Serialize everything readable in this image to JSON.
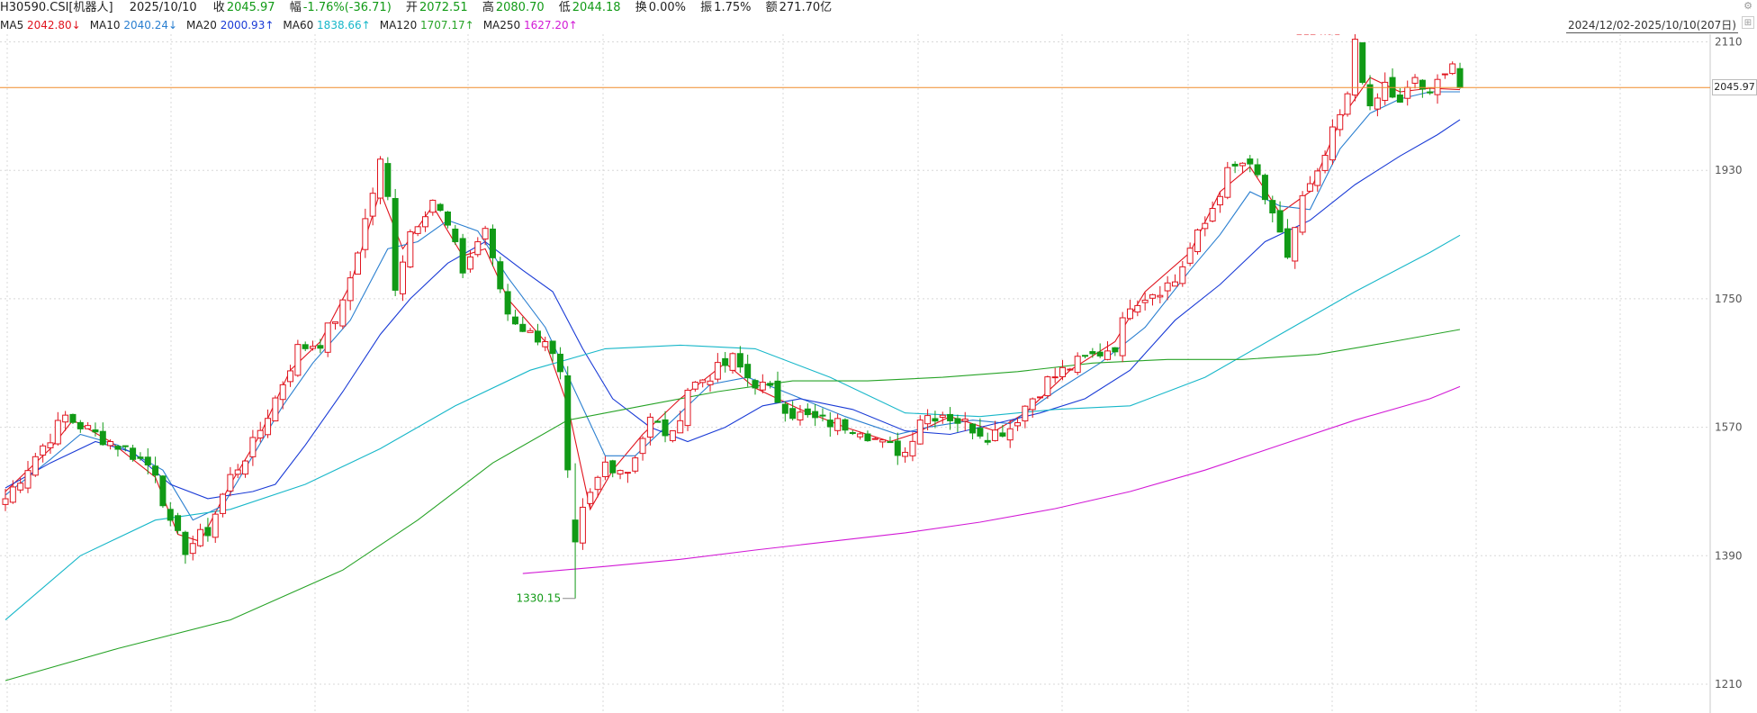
{
  "info": {
    "code": "H30590.CSI[机器人]",
    "date": "2025/10/10",
    "close_label": "收",
    "close": "2045.97",
    "change_label": "幅",
    "change": "-1.76%(-36.71)",
    "open_label": "开",
    "open": "2072.51",
    "high_label": "高",
    "high": "2080.70",
    "low_label": "低",
    "low": "2044.18",
    "turnover_label": "换",
    "turnover": "0.00%",
    "amplitude_label": "振",
    "amplitude": "1.75%",
    "amount_label": "额",
    "amount": "271.70亿"
  },
  "ma": [
    {
      "label": "MA5",
      "value": "2042.80↓",
      "color": "#e0141e"
    },
    {
      "label": "MA10",
      "value": "2040.24↓",
      "color": "#2a7fd0"
    },
    {
      "label": "MA20",
      "value": "2000.93↑",
      "color": "#1a3bd6"
    },
    {
      "label": "MA60",
      "value": "1838.66↑",
      "color": "#17b7c9"
    },
    {
      "label": "MA120",
      "value": "1707.17↑",
      "color": "#27a327"
    },
    {
      "label": "MA250",
      "value": "1627.20↑",
      "color": "#d21ad6"
    }
  ],
  "range_label": "2024/12/02-2025/10/10(207日)",
  "current_price_tag": "2045.97",
  "colors": {
    "up": "#e0141e",
    "down": "#119a16",
    "ref_line": "#f08c2a",
    "grid": "#d8d8d8"
  },
  "chart_data": {
    "type": "candlestick",
    "y_ticks": [
      1210,
      1390,
      1570,
      1750,
      1930,
      2110
    ],
    "ylim": [
      1200,
      2145
    ],
    "current_price": 2045.97,
    "annotations": {
      "max": {
        "label": "2124.91",
        "value": 2124.91
      },
      "min": {
        "label": "1330.15",
        "value": 1330.15
      }
    },
    "close_anchors": [
      [
        0,
        1470
      ],
      [
        4,
        1530
      ],
      [
        8,
        1585
      ],
      [
        12,
        1560
      ],
      [
        16,
        1540
      ],
      [
        20,
        1510
      ],
      [
        22,
        1430
      ],
      [
        24,
        1400
      ],
      [
        27,
        1425
      ],
      [
        30,
        1500
      ],
      [
        33,
        1545
      ],
      [
        36,
        1610
      ],
      [
        39,
        1680
      ],
      [
        42,
        1690
      ],
      [
        45,
        1740
      ],
      [
        47,
        1820
      ],
      [
        49,
        1900
      ],
      [
        50,
        1940
      ],
      [
        51,
        1890
      ],
      [
        52,
        1770
      ],
      [
        54,
        1845
      ],
      [
        57,
        1890
      ],
      [
        59,
        1850
      ],
      [
        61,
        1790
      ],
      [
        64,
        1850
      ],
      [
        65,
        1800
      ],
      [
        67,
        1730
      ],
      [
        70,
        1700
      ],
      [
        72,
        1695
      ],
      [
        74,
        1640
      ],
      [
        75,
        1500
      ],
      [
        76,
        1400
      ],
      [
        77,
        1450
      ],
      [
        80,
        1520
      ],
      [
        83,
        1510
      ],
      [
        86,
        1580
      ],
      [
        89,
        1555
      ],
      [
        91,
        1625
      ],
      [
        95,
        1650
      ],
      [
        97,
        1665
      ],
      [
        99,
        1640
      ],
      [
        102,
        1620
      ],
      [
        105,
        1590
      ],
      [
        108,
        1580
      ],
      [
        111,
        1575
      ],
      [
        114,
        1570
      ],
      [
        117,
        1545
      ],
      [
        120,
        1535
      ],
      [
        122,
        1585
      ],
      [
        125,
        1590
      ],
      [
        128,
        1575
      ],
      [
        131,
        1560
      ],
      [
        134,
        1570
      ],
      [
        136,
        1600
      ],
      [
        139,
        1635
      ],
      [
        142,
        1655
      ],
      [
        145,
        1670
      ],
      [
        148,
        1685
      ],
      [
        150,
        1745
      ],
      [
        153,
        1760
      ],
      [
        156,
        1775
      ],
      [
        158,
        1820
      ],
      [
        160,
        1855
      ],
      [
        163,
        1925
      ],
      [
        165,
        1940
      ],
      [
        167,
        1920
      ],
      [
        169,
        1860
      ],
      [
        171,
        1810
      ],
      [
        173,
        1890
      ],
      [
        175,
        1920
      ],
      [
        177,
        1980
      ],
      [
        179,
        2030
      ],
      [
        180,
        2115
      ],
      [
        182,
        2010
      ],
      [
        184,
        2050
      ],
      [
        186,
        2020
      ],
      [
        188,
        2060
      ],
      [
        190,
        2030
      ],
      [
        192,
        2075
      ],
      [
        193,
        2082
      ],
      [
        194,
        2046
      ]
    ],
    "ma_lines": [
      {
        "name": "MA5",
        "color": "#e0141e",
        "points": [
          [
            0,
            1480
          ],
          [
            6,
            1540
          ],
          [
            9,
            1580
          ],
          [
            14,
            1550
          ],
          [
            20,
            1500
          ],
          [
            23,
            1420
          ],
          [
            26,
            1410
          ],
          [
            30,
            1490
          ],
          [
            34,
            1560
          ],
          [
            38,
            1650
          ],
          [
            42,
            1690
          ],
          [
            46,
            1770
          ],
          [
            50,
            1900
          ],
          [
            53,
            1820
          ],
          [
            57,
            1880
          ],
          [
            61,
            1810
          ],
          [
            64,
            1820
          ],
          [
            67,
            1750
          ],
          [
            72,
            1690
          ],
          [
            75,
            1600
          ],
          [
            78,
            1455
          ],
          [
            81,
            1510
          ],
          [
            85,
            1560
          ],
          [
            90,
            1610
          ],
          [
            96,
            1660
          ],
          [
            100,
            1625
          ],
          [
            106,
            1595
          ],
          [
            112,
            1570
          ],
          [
            118,
            1550
          ],
          [
            121,
            1560
          ],
          [
            126,
            1585
          ],
          [
            132,
            1565
          ],
          [
            136,
            1590
          ],
          [
            142,
            1650
          ],
          [
            148,
            1690
          ],
          [
            152,
            1760
          ],
          [
            158,
            1815
          ],
          [
            162,
            1900
          ],
          [
            166,
            1935
          ],
          [
            170,
            1870
          ],
          [
            174,
            1900
          ],
          [
            178,
            2000
          ],
          [
            182,
            2060
          ],
          [
            186,
            2040
          ],
          [
            190,
            2045
          ],
          [
            194,
            2043
          ]
        ]
      },
      {
        "name": "MA10",
        "color": "#2a7fd0",
        "points": [
          [
            0,
            1475
          ],
          [
            6,
            1525
          ],
          [
            10,
            1560
          ],
          [
            15,
            1545
          ],
          [
            21,
            1510
          ],
          [
            25,
            1440
          ],
          [
            29,
            1460
          ],
          [
            33,
            1530
          ],
          [
            37,
            1600
          ],
          [
            41,
            1660
          ],
          [
            46,
            1720
          ],
          [
            51,
            1820
          ],
          [
            55,
            1830
          ],
          [
            59,
            1860
          ],
          [
            63,
            1845
          ],
          [
            67,
            1780
          ],
          [
            72,
            1710
          ],
          [
            76,
            1620
          ],
          [
            80,
            1530
          ],
          [
            84,
            1530
          ],
          [
            89,
            1580
          ],
          [
            94,
            1630
          ],
          [
            99,
            1640
          ],
          [
            105,
            1615
          ],
          [
            112,
            1585
          ],
          [
            119,
            1560
          ],
          [
            123,
            1570
          ],
          [
            129,
            1580
          ],
          [
            134,
            1575
          ],
          [
            140,
            1620
          ],
          [
            146,
            1660
          ],
          [
            152,
            1710
          ],
          [
            158,
            1790
          ],
          [
            162,
            1840
          ],
          [
            166,
            1900
          ],
          [
            170,
            1880
          ],
          [
            174,
            1875
          ],
          [
            178,
            1960
          ],
          [
            182,
            2010
          ],
          [
            186,
            2030
          ],
          [
            190,
            2040
          ],
          [
            194,
            2040
          ]
        ]
      },
      {
        "name": "MA20",
        "color": "#1a3bd6",
        "points": [
          [
            0,
            1485
          ],
          [
            6,
            1520
          ],
          [
            12,
            1550
          ],
          [
            17,
            1535
          ],
          [
            22,
            1490
          ],
          [
            27,
            1470
          ],
          [
            33,
            1480
          ],
          [
            36,
            1490
          ],
          [
            40,
            1545
          ],
          [
            45,
            1620
          ],
          [
            50,
            1700
          ],
          [
            54,
            1750
          ],
          [
            59,
            1800
          ],
          [
            64,
            1830
          ],
          [
            69,
            1790
          ],
          [
            73,
            1760
          ],
          [
            77,
            1680
          ],
          [
            81,
            1610
          ],
          [
            86,
            1570
          ],
          [
            91,
            1550
          ],
          [
            96,
            1570
          ],
          [
            101,
            1600
          ],
          [
            106,
            1610
          ],
          [
            113,
            1595
          ],
          [
            120,
            1565
          ],
          [
            126,
            1560
          ],
          [
            132,
            1575
          ],
          [
            138,
            1590
          ],
          [
            144,
            1610
          ],
          [
            150,
            1650
          ],
          [
            156,
            1720
          ],
          [
            162,
            1770
          ],
          [
            168,
            1830
          ],
          [
            174,
            1860
          ],
          [
            180,
            1910
          ],
          [
            186,
            1950
          ],
          [
            191,
            1980
          ],
          [
            194,
            2001
          ]
        ]
      },
      {
        "name": "MA60",
        "color": "#17b7c9",
        "points": [
          [
            0,
            1300
          ],
          [
            10,
            1390
          ],
          [
            20,
            1440
          ],
          [
            30,
            1455
          ],
          [
            40,
            1490
          ],
          [
            50,
            1540
          ],
          [
            60,
            1600
          ],
          [
            70,
            1650
          ],
          [
            80,
            1680
          ],
          [
            90,
            1685
          ],
          [
            100,
            1680
          ],
          [
            110,
            1640
          ],
          [
            120,
            1590
          ],
          [
            130,
            1585
          ],
          [
            140,
            1595
          ],
          [
            150,
            1600
          ],
          [
            160,
            1640
          ],
          [
            170,
            1700
          ],
          [
            180,
            1760
          ],
          [
            190,
            1815
          ],
          [
            194,
            1839
          ]
        ]
      },
      {
        "name": "MA120",
        "color": "#27a327",
        "points": [
          [
            0,
            1215
          ],
          [
            15,
            1260
          ],
          [
            30,
            1300
          ],
          [
            45,
            1370
          ],
          [
            55,
            1440
          ],
          [
            65,
            1520
          ],
          [
            75,
            1580
          ],
          [
            85,
            1600
          ],
          [
            95,
            1620
          ],
          [
            105,
            1635
          ],
          [
            115,
            1635
          ],
          [
            125,
            1640
          ],
          [
            135,
            1648
          ],
          [
            145,
            1660
          ],
          [
            155,
            1665
          ],
          [
            165,
            1665
          ],
          [
            175,
            1672
          ],
          [
            185,
            1690
          ],
          [
            194,
            1707
          ]
        ]
      },
      {
        "name": "MA250",
        "color": "#d21ad6",
        "points": [
          [
            69,
            1365
          ],
          [
            80,
            1375
          ],
          [
            90,
            1385
          ],
          [
            100,
            1398
          ],
          [
            110,
            1410
          ],
          [
            120,
            1422
          ],
          [
            130,
            1437
          ],
          [
            140,
            1456
          ],
          [
            150,
            1480
          ],
          [
            160,
            1510
          ],
          [
            170,
            1545
          ],
          [
            180,
            1580
          ],
          [
            190,
            1610
          ],
          [
            194,
            1627
          ]
        ]
      }
    ]
  }
}
